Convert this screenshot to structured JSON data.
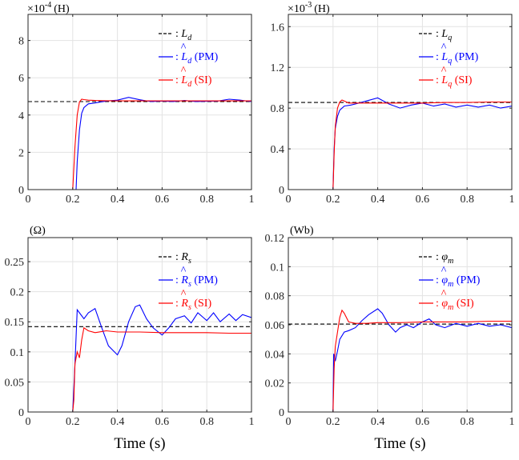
{
  "colors": {
    "true": "#000000",
    "pm": "#0000ff",
    "si": "#ff0000",
    "grid": "#e3e3e3",
    "axis": "#262626"
  },
  "chart_data": [
    {
      "type": "line",
      "panel": "top-left",
      "unit_label": "(H)",
      "exponent_label": "×10",
      "exponent_power": "-4",
      "xlim": [
        0,
        1
      ],
      "ylim": [
        0,
        9.4
      ],
      "xticks": [
        0,
        0.2,
        0.4,
        0.6,
        0.8,
        1
      ],
      "xtick_labels": [
        "0",
        "0.2",
        "0.4",
        "0.6",
        "0.8",
        "1"
      ],
      "yticks": [
        0,
        2,
        4,
        6,
        8
      ],
      "ytick_labels": [
        "0",
        "2",
        "4",
        "6",
        "8"
      ],
      "xlabel": "",
      "grid": true,
      "legend_position": "top-right",
      "legend": [
        {
          "symbol": "L",
          "hat": false,
          "sub": "d",
          "suffix": ""
        },
        {
          "symbol": "L",
          "hat": true,
          "sub": "d",
          "suffix": " (PM)"
        },
        {
          "symbol": "L",
          "hat": true,
          "sub": "d",
          "suffix": " (SI)"
        }
      ],
      "series": [
        {
          "name": "L_d",
          "style": "dashed",
          "x": [
            0,
            1
          ],
          "y": [
            4.72,
            4.72
          ]
        },
        {
          "name": "L̂_d (PM)",
          "style": "solid",
          "x": [
            0,
            0.215,
            0.22,
            0.23,
            0.24,
            0.25,
            0.27,
            0.3,
            0.35,
            0.4,
            0.45,
            0.5,
            0.55,
            0.6,
            0.65,
            0.7,
            0.75,
            0.8,
            0.85,
            0.9,
            0.95,
            1.0
          ],
          "y": [
            0,
            0,
            1.5,
            3.2,
            4.1,
            4.4,
            4.6,
            4.65,
            4.75,
            4.8,
            4.95,
            4.82,
            4.72,
            4.75,
            4.72,
            4.78,
            4.72,
            4.74,
            4.75,
            4.85,
            4.8,
            4.72
          ]
        },
        {
          "name": "L̂_d (SI)",
          "style": "solid",
          "x": [
            0,
            0.2,
            0.21,
            0.22,
            0.23,
            0.24,
            0.25,
            0.27,
            0.3,
            0.35,
            0.4,
            0.5,
            0.6,
            0.7,
            0.8,
            0.9,
            1.0
          ],
          "y": [
            0,
            0,
            2.3,
            4.0,
            4.7,
            4.85,
            4.83,
            4.8,
            4.78,
            4.77,
            4.76,
            4.76,
            4.76,
            4.76,
            4.76,
            4.76,
            4.76
          ]
        }
      ]
    },
    {
      "type": "line",
      "panel": "top-right",
      "unit_label": "(H)",
      "exponent_label": "×10",
      "exponent_power": "-3",
      "xlim": [
        0,
        1
      ],
      "ylim": [
        0,
        1.72
      ],
      "xticks": [
        0,
        0.2,
        0.4,
        0.6,
        0.8,
        1
      ],
      "xtick_labels": [
        "0",
        "0.2",
        "0.4",
        "0.6",
        "0.8",
        "1"
      ],
      "yticks": [
        0,
        0.4,
        0.8,
        1.2,
        1.6
      ],
      "ytick_labels": [
        "0",
        "0.4",
        "0.8",
        "1.2",
        "1.6"
      ],
      "xlabel": "",
      "grid": true,
      "legend_position": "top-right",
      "legend": [
        {
          "symbol": "L",
          "hat": false,
          "sub": "q",
          "suffix": ""
        },
        {
          "symbol": "L",
          "hat": true,
          "sub": "q",
          "suffix": " (PM)"
        },
        {
          "symbol": "L",
          "hat": true,
          "sub": "q",
          "suffix": " (SI)"
        }
      ],
      "series": [
        {
          "name": "L_q",
          "style": "dashed",
          "x": [
            0,
            1
          ],
          "y": [
            0.855,
            0.855
          ]
        },
        {
          "name": "L̂_q (PM)",
          "style": "solid",
          "x": [
            0,
            0.2,
            0.205,
            0.21,
            0.22,
            0.23,
            0.25,
            0.28,
            0.3,
            0.35,
            0.4,
            0.45,
            0.5,
            0.55,
            0.6,
            0.65,
            0.7,
            0.75,
            0.8,
            0.85,
            0.9,
            0.95,
            1.0
          ],
          "y": [
            0,
            0,
            0.4,
            0.6,
            0.72,
            0.78,
            0.82,
            0.83,
            0.84,
            0.87,
            0.9,
            0.84,
            0.8,
            0.83,
            0.85,
            0.82,
            0.84,
            0.81,
            0.83,
            0.81,
            0.83,
            0.8,
            0.82
          ]
        },
        {
          "name": "L̂_q (SI)",
          "style": "solid",
          "x": [
            0,
            0.2,
            0.205,
            0.21,
            0.22,
            0.23,
            0.24,
            0.25,
            0.27,
            0.3,
            0.4,
            0.5,
            0.6,
            0.7,
            0.8,
            0.9,
            1.0
          ],
          "y": [
            0,
            0,
            0.35,
            0.62,
            0.8,
            0.86,
            0.88,
            0.87,
            0.85,
            0.85,
            0.85,
            0.85,
            0.85,
            0.855,
            0.855,
            0.86,
            0.86
          ]
        }
      ]
    },
    {
      "type": "line",
      "panel": "bottom-left",
      "unit_label": "(Ω)",
      "xlim": [
        0,
        1
      ],
      "ylim": [
        0,
        0.29
      ],
      "xticks": [
        0,
        0.2,
        0.4,
        0.6,
        0.8,
        1
      ],
      "xtick_labels": [
        "0",
        "0.2",
        "0.4",
        "0.6",
        "0.8",
        "1"
      ],
      "yticks": [
        0,
        0.05,
        0.1,
        0.15,
        0.2,
        0.25
      ],
      "ytick_labels": [
        "0",
        "0.05",
        "0.1",
        "0.15",
        "0.2",
        "0.25"
      ],
      "xlabel": "Time (s)",
      "grid": true,
      "legend_position": "top-right",
      "legend": [
        {
          "symbol": "R",
          "hat": false,
          "sub": "s",
          "suffix": ""
        },
        {
          "symbol": "R",
          "hat": true,
          "sub": "s",
          "suffix": " (PM)"
        },
        {
          "symbol": "R",
          "hat": true,
          "sub": "s",
          "suffix": " (SI)"
        }
      ],
      "series": [
        {
          "name": "R_s",
          "style": "dashed",
          "x": [
            0,
            1
          ],
          "y": [
            0.142,
            0.142
          ]
        },
        {
          "name": "R̂_s (PM)",
          "style": "solid",
          "x": [
            0,
            0.2,
            0.21,
            0.22,
            0.23,
            0.25,
            0.27,
            0.3,
            0.33,
            0.36,
            0.4,
            0.42,
            0.45,
            0.48,
            0.5,
            0.53,
            0.56,
            0.6,
            0.63,
            0.66,
            0.7,
            0.73,
            0.76,
            0.8,
            0.83,
            0.86,
            0.9,
            0.93,
            0.96,
            1.0
          ],
          "y": [
            0,
            0,
            0.08,
            0.17,
            0.165,
            0.155,
            0.165,
            0.172,
            0.14,
            0.11,
            0.095,
            0.11,
            0.15,
            0.175,
            0.178,
            0.155,
            0.14,
            0.128,
            0.14,
            0.155,
            0.16,
            0.148,
            0.165,
            0.152,
            0.165,
            0.15,
            0.163,
            0.152,
            0.162,
            0.157
          ]
        },
        {
          "name": "R̂_s (SI)",
          "style": "solid",
          "x": [
            0,
            0.2,
            0.205,
            0.21,
            0.22,
            0.23,
            0.24,
            0.25,
            0.27,
            0.3,
            0.35,
            0.4,
            0.5,
            0.6,
            0.7,
            0.8,
            0.9,
            1.0
          ],
          "y": [
            0,
            0,
            0.02,
            0.08,
            0.1,
            0.09,
            0.12,
            0.14,
            0.135,
            0.132,
            0.135,
            0.133,
            0.133,
            0.132,
            0.132,
            0.132,
            0.131,
            0.131
          ]
        }
      ]
    },
    {
      "type": "line",
      "panel": "bottom-right",
      "unit_label": "(Wb)",
      "xlim": [
        0,
        1
      ],
      "ylim": [
        0,
        0.12
      ],
      "xticks": [
        0,
        0.2,
        0.4,
        0.6,
        0.8,
        1
      ],
      "xtick_labels": [
        "0",
        "0.2",
        "0.4",
        "0.6",
        "0.8",
        "1"
      ],
      "yticks": [
        0,
        0.02,
        0.04,
        0.06,
        0.08,
        0.1,
        0.12
      ],
      "ytick_labels": [
        "0",
        "0.02",
        "0.04",
        "0.06",
        "0.08",
        "0.1",
        "0.12"
      ],
      "xlabel": "Time (s)",
      "grid": true,
      "legend_position": "top-right",
      "legend": [
        {
          "symbol": "φ",
          "hat": false,
          "sub": "m",
          "suffix": ""
        },
        {
          "symbol": "φ",
          "hat": true,
          "sub": "m",
          "suffix": " (PM)"
        },
        {
          "symbol": "φ",
          "hat": true,
          "sub": "m",
          "suffix": " (SI)"
        }
      ],
      "series": [
        {
          "name": "φ_m",
          "style": "dashed",
          "x": [
            0,
            1
          ],
          "y": [
            0.0605,
            0.0605
          ]
        },
        {
          "name": "φ̂_m (PM)",
          "style": "solid",
          "x": [
            0,
            0.2,
            0.203,
            0.21,
            0.22,
            0.23,
            0.25,
            0.27,
            0.3,
            0.33,
            0.36,
            0.4,
            0.42,
            0.45,
            0.48,
            0.5,
            0.53,
            0.56,
            0.6,
            0.63,
            0.66,
            0.7,
            0.75,
            0.8,
            0.85,
            0.9,
            0.95,
            1.0
          ],
          "y": [
            0,
            0,
            0.04,
            0.035,
            0.042,
            0.05,
            0.055,
            0.056,
            0.058,
            0.063,
            0.067,
            0.071,
            0.068,
            0.06,
            0.055,
            0.058,
            0.06,
            0.058,
            0.062,
            0.064,
            0.06,
            0.058,
            0.061,
            0.059,
            0.061,
            0.059,
            0.06,
            0.058
          ]
        },
        {
          "name": "φ̂_m (SI)",
          "style": "solid",
          "x": [
            0,
            0.2,
            0.205,
            0.21,
            0.22,
            0.23,
            0.24,
            0.25,
            0.27,
            0.3,
            0.35,
            0.4,
            0.5,
            0.6,
            0.7,
            0.8,
            0.9,
            1.0
          ],
          "y": [
            0,
            0,
            0.03,
            0.045,
            0.055,
            0.065,
            0.07,
            0.068,
            0.062,
            0.061,
            0.061,
            0.0615,
            0.0615,
            0.062,
            0.062,
            0.062,
            0.0625,
            0.0625
          ]
        }
      ]
    }
  ]
}
